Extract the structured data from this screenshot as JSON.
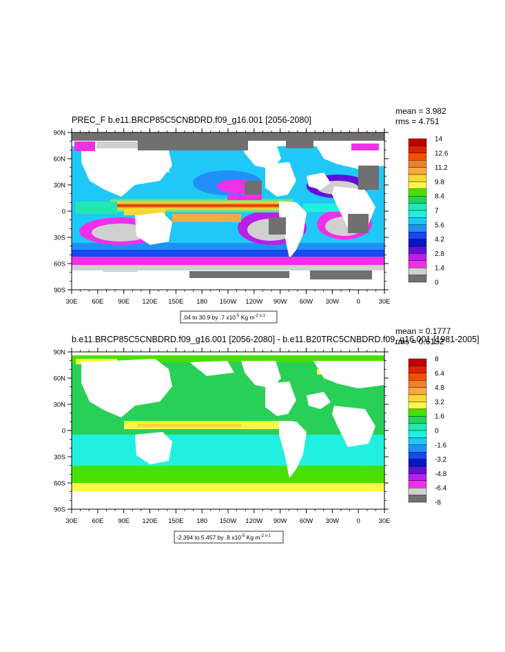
{
  "panels": [
    {
      "title": "PREC_F b.e11.BRCP85C5CNBDRD.f09_g16.001 [2056-2080]",
      "mean": "mean = 3.982",
      "rms": "rms = 4.751",
      "info": ".04 to 30.9 by .7 x10",
      "info_exp": "-5",
      "info_unit": "Kg m",
      "info_unit_exp": "-2 s-1",
      "lat_labels": [
        "90N",
        "60N",
        "30N",
        "0",
        "30S",
        "60S",
        "90S"
      ],
      "lon_labels": [
        "30E",
        "60E",
        "90E",
        "120E",
        "150E",
        "180",
        "150W",
        "120W",
        "90W",
        "60W",
        "30W",
        "0",
        "30E"
      ],
      "colorbar_labels": [
        "14",
        "12.6",
        "11.2",
        "9.8",
        "8.4",
        "7",
        "5.6",
        "4.2",
        "2.8",
        "1.4",
        "0"
      ],
      "colorbar_colors": [
        "#c00000",
        "#e02000",
        "#f05000",
        "#f08030",
        "#f8a840",
        "#f8d838",
        "#f8f848",
        "#48e000",
        "#28d058",
        "#20e8b0",
        "#20f0e0",
        "#20c8f8",
        "#2090f8",
        "#1848f0",
        "#0818c0",
        "#6010d8",
        "#b820e8",
        "#f030e8",
        "#d0d0d0",
        "#707070"
      ]
    },
    {
      "title": "b.e11.BRCP85C5CNBDRD.f09_g16.001 [2056-2080] - b.e11.B20TRC5CNBDRD.f09_g16.001 [1981-2005]",
      "mean": "mean = 0.1777",
      "rms": "rms = 0.6152",
      "info": "-2.394 to 5.457 by .8 x10",
      "info_exp": "-5",
      "info_unit": "Kg m",
      "info_unit_exp": "-2 s-1",
      "lat_labels": [
        "90N",
        "60N",
        "30N",
        "0",
        "30S",
        "60S",
        "90S"
      ],
      "lon_labels": [
        "30E",
        "60E",
        "90E",
        "120E",
        "150E",
        "180",
        "150W",
        "120W",
        "90W",
        "60W",
        "30W",
        "0",
        "30E"
      ],
      "colorbar_labels": [
        "8",
        "6.4",
        "4.8",
        "3.2",
        "1.6",
        "0",
        "-1.6",
        "-3.2",
        "-4.8",
        "-6.4",
        "-8"
      ],
      "colorbar_colors": [
        "#c00000",
        "#e02000",
        "#f05000",
        "#f08030",
        "#f8a840",
        "#f8d838",
        "#f8f848",
        "#48e000",
        "#28d058",
        "#20e8b0",
        "#20f0e0",
        "#20c8f8",
        "#2090f8",
        "#1848f0",
        "#0818c0",
        "#6010d8",
        "#b820e8",
        "#f030e8",
        "#d0d0d0",
        "#707070"
      ]
    }
  ]
}
